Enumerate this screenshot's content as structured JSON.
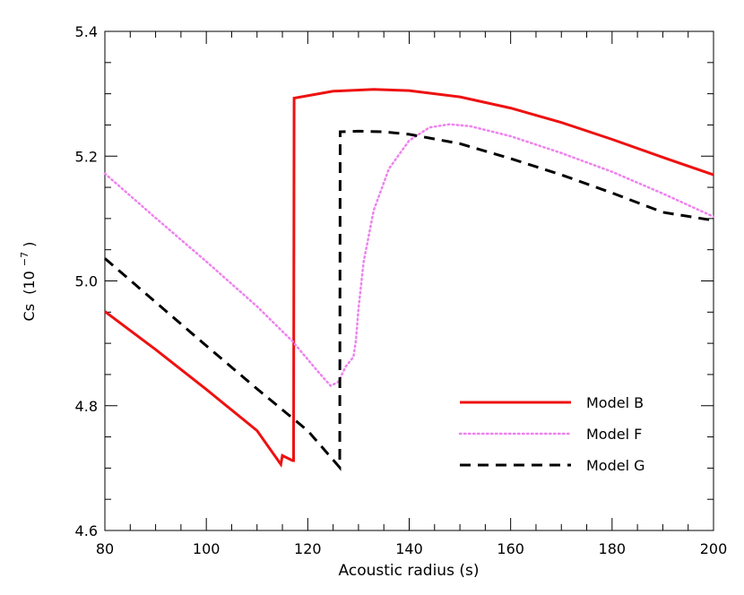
{
  "chart_data": {
    "type": "line",
    "xlabel": "Acoustic radius (s)",
    "ylabel": "Cs",
    "ylabel_unit": "(10",
    "ylabel_exp": "−7",
    "ylabel_close": ")",
    "xlim": [
      80,
      200
    ],
    "ylim": [
      4.6,
      5.4
    ],
    "x_ticks": [
      80,
      100,
      120,
      140,
      160,
      180,
      200
    ],
    "x_tick_labels": [
      "80",
      "100",
      "120",
      "140",
      "160",
      "180",
      "200"
    ],
    "y_ticks": [
      4.6,
      4.8,
      5.0,
      5.2,
      5.4
    ],
    "y_tick_labels": [
      "4.6",
      "4.8",
      "5.0",
      "5.2",
      "5.4"
    ],
    "grid": false,
    "legend_position": "bottom-right",
    "series": [
      {
        "name": "Model B",
        "color": "#ee1111",
        "style": "solid",
        "x": [
          80,
          90,
          100,
          110,
          114.7,
          115.0,
          117.0,
          117.2,
          117.3,
          125,
          133,
          140,
          150,
          160,
          170,
          180,
          190,
          200
        ],
        "y": [
          4.951,
          4.89,
          4.826,
          4.76,
          4.706,
          4.72,
          4.712,
          4.712,
          5.293,
          5.304,
          5.307,
          5.305,
          5.295,
          5.277,
          5.254,
          5.227,
          5.198,
          5.17
        ]
      },
      {
        "name": "Model F",
        "color": "#ee82ee",
        "style": "dotted",
        "x": [
          80,
          90,
          100,
          110,
          117,
          122,
          124.5,
          126,
          127.5,
          129,
          129.5,
          130,
          131,
          133,
          136,
          140,
          144,
          148,
          152,
          160,
          170,
          180,
          190,
          200
        ],
        "y": [
          5.172,
          5.101,
          5.031,
          4.959,
          4.903,
          4.855,
          4.832,
          4.838,
          4.863,
          4.878,
          4.905,
          4.955,
          5.03,
          5.113,
          5.18,
          5.225,
          5.246,
          5.251,
          5.248,
          5.232,
          5.205,
          5.175,
          5.14,
          5.103
        ]
      },
      {
        "name": "Model G",
        "color": "#000000",
        "style": "dashed",
        "x": [
          80,
          90,
          100,
          110,
          120,
          126.3,
          126.4,
          130,
          135,
          140,
          150,
          160,
          170,
          180,
          190,
          200
        ],
        "y": [
          5.036,
          4.966,
          4.896,
          4.827,
          4.76,
          4.701,
          5.239,
          5.24,
          5.239,
          5.235,
          5.22,
          5.196,
          5.17,
          5.141,
          5.11,
          5.097
        ]
      }
    ]
  }
}
